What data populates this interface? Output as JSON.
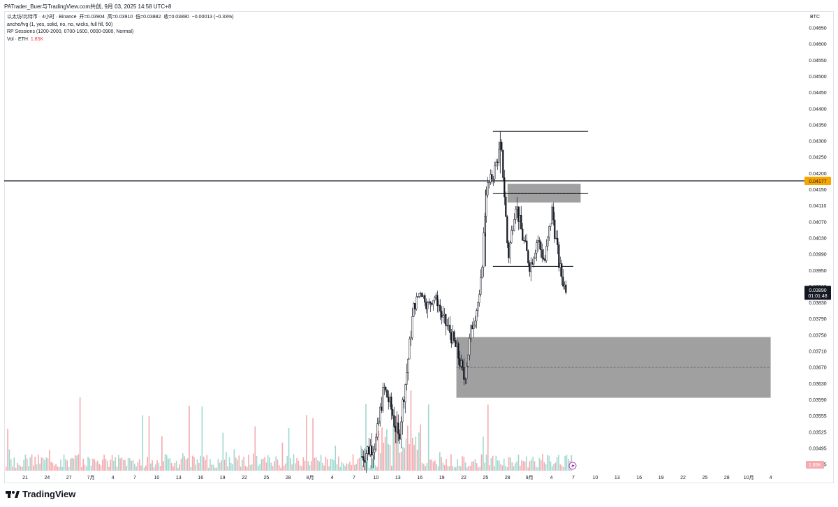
{
  "caption": "PATrader_Buer与TradingView.com共创, 9月 03, 2025 14:58 UTC+8",
  "legend": {
    "symbol_line": "以太坊/比特币 · 4小时 · Binance",
    "open_label": "开=",
    "open": "0.03904",
    "high_label": "高=",
    "high": "0.03910",
    "low_label": "低=",
    "low": "0.03882",
    "close_label": "收=",
    "close": "0.03890",
    "change": "−0.00013 (−0.33%)",
    "indicator1": "anche/fvg (1, yes, solid, no, no, wicks, full fill, 50)",
    "indicator2": "RP Sessions (1200-2000, 0700-1600, 0000-0900, Normal)",
    "vol_label": "Vol · ETH",
    "vol_value": "1.85K"
  },
  "price_scale_title": "BTC",
  "footer": {
    "logo_text": "TradingView"
  },
  "colors": {
    "up": "#089981",
    "down": "#f23645",
    "candle": "#131722",
    "zone": "#808080",
    "current_price_bg": "#131722",
    "level_badge": "#f7a600",
    "vol_up": "#9fd8cf",
    "vol_down": "#f6a9ae"
  },
  "chart_data": {
    "type": "candlestick",
    "symbol": "ETH/BTC",
    "interval": "4h",
    "exchange": "Binance",
    "y_ticks": [
      "0.04650",
      "0.04600",
      "0.04550",
      "0.04500",
      "0.04450",
      "0.04400",
      "0.04350",
      "0.04300",
      "0.04250",
      "0.04200",
      "0.04150",
      "0.04110",
      "0.04070",
      "0.04030",
      "0.03990",
      "0.03950",
      "0.03910",
      "0.03830",
      "0.03790",
      "0.03750",
      "0.03710",
      "0.03670",
      "0.03630",
      "0.03590",
      "0.03555",
      "0.03525",
      "0.03495",
      "0.03465"
    ],
    "x_ticks": [
      "21",
      "24",
      "27",
      "7月",
      "4",
      "7",
      "10",
      "13",
      "16",
      "19",
      "22",
      "25",
      "28",
      "8月",
      "4",
      "7",
      "10",
      "13",
      "16",
      "19",
      "22",
      "25",
      "28",
      "9月",
      "4",
      "7",
      "10",
      "13",
      "16",
      "19",
      "22",
      "25",
      "28",
      "10月",
      "4"
    ],
    "horizontal_level": {
      "value": 0.04177,
      "label": "0.04177"
    },
    "last_price": {
      "label": "0.03890",
      "countdown": "01:01:48"
    },
    "volume_badge": "1.85K",
    "price_path": [
      [
        "8/6",
        0.0348
      ],
      [
        "8/8",
        0.0351
      ],
      [
        "8/9",
        0.0362
      ],
      [
        "8/10",
        0.0357
      ],
      [
        "8/11",
        0.0351
      ],
      [
        "8/12",
        0.0364
      ],
      [
        "8/13",
        0.0381
      ],
      [
        "8/14",
        0.0389
      ],
      [
        "8/15",
        0.0382
      ],
      [
        "8/16",
        0.0386
      ],
      [
        "8/17",
        0.0379
      ],
      [
        "8/18",
        0.0376
      ],
      [
        "8/19",
        0.0371
      ],
      [
        "8/20",
        0.0364
      ],
      [
        "8/21",
        0.0377
      ],
      [
        "8/22",
        0.0384
      ],
      [
        "8/23",
        0.0415
      ],
      [
        "8/24",
        0.042
      ],
      [
        "8/25",
        0.0429
      ],
      [
        "8/26",
        0.0398
      ],
      [
        "8/27",
        0.0412
      ],
      [
        "8/28",
        0.0403
      ],
      [
        "8/29",
        0.0396
      ],
      [
        "8/30",
        0.0403
      ],
      [
        "8/31",
        0.0397
      ],
      [
        "9/1",
        0.041
      ],
      [
        "9/2",
        0.0396
      ],
      [
        "9/3",
        0.0389
      ]
    ],
    "zones": [
      {
        "type": "fvg",
        "top": 0.04168,
        "bottom": 0.04118
      },
      {
        "type": "fvg",
        "top": 0.03745,
        "bottom": 0.03595
      }
    ],
    "drawn_lines": [
      {
        "value": 0.0433
      },
      {
        "value": 0.0414
      },
      {
        "value": 0.0396
      }
    ]
  }
}
